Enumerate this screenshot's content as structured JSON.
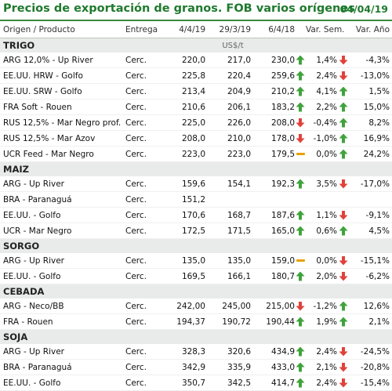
{
  "title": "Precios de exportación de granos. FOB varios orígenes",
  "date": "04/04/19",
  "headers": {
    "origin": "Origen / Producto",
    "delivery": "Entrega",
    "d1": "4/4/19",
    "d2": "29/3/19",
    "d3": "6/4/18",
    "var_week": "Var. Sem.",
    "var_year": "Var. Año"
  },
  "unit": "US$/t",
  "colors": {
    "accent": "#1f7a2e",
    "up": "#3fa33b",
    "down": "#e0413a",
    "flat": "#e8a100"
  },
  "sections": [
    {
      "name": "TRIGO",
      "show_unit": true,
      "rows": [
        {
          "name": "ARG 12,0% - Up River",
          "delivery": "Cerc.",
          "p1": "220,0",
          "p2": "217,0",
          "p3": "230,0",
          "a1": "up-arrow-icon",
          "vs": "1,4%",
          "a2": "down-arrow-icon",
          "va": "-4,3%"
        },
        {
          "name": "EE.UU. HRW - Golfo",
          "delivery": "Cerc.",
          "p1": "225,8",
          "p2": "220,4",
          "p3": "259,6",
          "a1": "up-arrow-icon",
          "vs": "2,4%",
          "a2": "down-arrow-icon",
          "va": "-13,0%"
        },
        {
          "name": "EE.UU. SRW - Golfo",
          "delivery": "Cerc.",
          "p1": "213,4",
          "p2": "204,9",
          "p3": "210,2",
          "a1": "up-arrow-icon",
          "vs": "4,1%",
          "a2": "up-arrow-icon",
          "va": "1,5%"
        },
        {
          "name": "FRA Soft - Rouen",
          "delivery": "Cerc.",
          "p1": "210,6",
          "p2": "206,1",
          "p3": "183,2",
          "a1": "up-arrow-icon",
          "vs": "2,2%",
          "a2": "up-arrow-icon",
          "va": "15,0%"
        },
        {
          "name": "RUS 12,5% - Mar Negro prof.",
          "delivery": "Cerc.",
          "p1": "225,0",
          "p2": "226,0",
          "p3": "208,0",
          "a1": "down-arrow-icon",
          "vs": "-0,4%",
          "a2": "up-arrow-icon",
          "va": "8,2%"
        },
        {
          "name": "RUS 12,5% - Mar Azov",
          "delivery": "Cerc.",
          "p1": "208,0",
          "p2": "210,0",
          "p3": "178,0",
          "a1": "down-arrow-icon",
          "vs": "-1,0%",
          "a2": "up-arrow-icon",
          "va": "16,9%"
        },
        {
          "name": "UCR Feed - Mar Negro",
          "delivery": "Cerc.",
          "p1": "223,0",
          "p2": "223,0",
          "p3": "179,5",
          "a1": "flat-dash-icon",
          "vs": "0,0%",
          "a2": "up-arrow-icon",
          "va": "24,2%"
        }
      ]
    },
    {
      "name": "MAIZ",
      "rows": [
        {
          "name": "ARG - Up River",
          "delivery": "Cerc.",
          "p1": "159,6",
          "p2": "154,1",
          "p3": "192,3",
          "a1": "up-arrow-icon",
          "vs": "3,5%",
          "a2": "down-arrow-icon",
          "va": "-17,0%"
        },
        {
          "name": "BRA - Paranaguá",
          "delivery": "Cerc.",
          "p1": "151,2",
          "p2": "",
          "p3": "",
          "a1": "",
          "vs": "",
          "a2": "",
          "va": ""
        },
        {
          "name": "EE.UU. - Golfo",
          "delivery": "Cerc.",
          "p1": "170,6",
          "p2": "168,7",
          "p3": "187,6",
          "a1": "up-arrow-icon",
          "vs": "1,1%",
          "a2": "down-arrow-icon",
          "va": "-9,1%"
        },
        {
          "name": "UCR - Mar Negro",
          "delivery": "Cerc.",
          "p1": "172,5",
          "p2": "171,5",
          "p3": "165,0",
          "a1": "up-arrow-icon",
          "vs": "0,6%",
          "a2": "up-arrow-icon",
          "va": "4,5%"
        }
      ]
    },
    {
      "name": "SORGO",
      "rows": [
        {
          "name": "ARG - Up River",
          "delivery": "Cerc.",
          "p1": "135,0",
          "p2": "135,0",
          "p3": "159,0",
          "a1": "flat-dash-icon",
          "vs": "0,0%",
          "a2": "down-arrow-icon",
          "va": "-15,1%"
        },
        {
          "name": "EE.UU. - Golfo",
          "delivery": "Cerc.",
          "p1": "169,5",
          "p2": "166,1",
          "p3": "180,7",
          "a1": "up-arrow-icon",
          "vs": "2,0%",
          "a2": "down-arrow-icon",
          "va": "-6,2%"
        }
      ]
    },
    {
      "name": "CEBADA",
      "rows": [
        {
          "name": "ARG - Neco/BB",
          "delivery": "Cerc.",
          "p1": "242,00",
          "p2": "245,00",
          "p3": "215,00",
          "a1": "down-arrow-icon",
          "vs": "-1,2%",
          "a2": "up-arrow-icon",
          "va": "12,6%"
        },
        {
          "name": "FRA - Rouen",
          "delivery": "Cerc.",
          "p1": "194,37",
          "p2": "190,72",
          "p3": "190,44",
          "a1": "up-arrow-icon",
          "vs": "1,9%",
          "a2": "up-arrow-icon",
          "va": "2,1%"
        }
      ]
    },
    {
      "name": "SOJA",
      "rows": [
        {
          "name": "ARG - Up River",
          "delivery": "Cerc.",
          "p1": "328,3",
          "p2": "320,6",
          "p3": "434,9",
          "a1": "up-arrow-icon",
          "vs": "2,4%",
          "a2": "down-arrow-icon",
          "va": "-24,5%"
        },
        {
          "name": "BRA - Paranaguá",
          "delivery": "Cerc.",
          "p1": "342,9",
          "p2": "335,9",
          "p3": "433,0",
          "a1": "up-arrow-icon",
          "vs": "2,1%",
          "a2": "down-arrow-icon",
          "va": "-20,8%"
        },
        {
          "name": "EE.UU. - Golfo",
          "delivery": "Cerc.",
          "p1": "350,7",
          "p2": "342,5",
          "p3": "414,7",
          "a1": "up-arrow-icon",
          "vs": "2,4%",
          "a2": "down-arrow-icon",
          "va": "-15,4%"
        }
      ]
    }
  ]
}
